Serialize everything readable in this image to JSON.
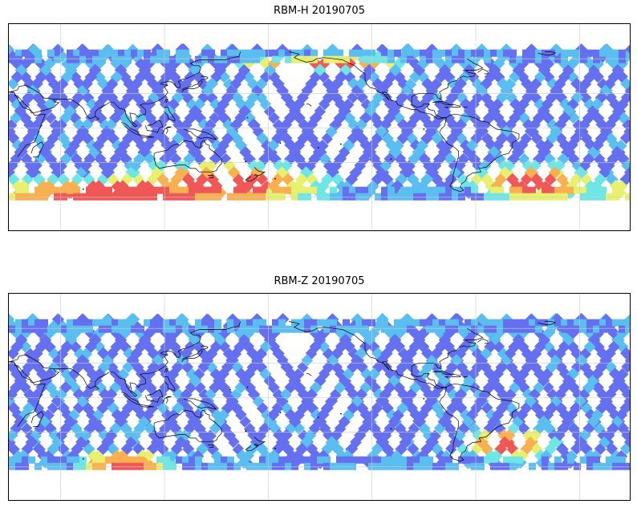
{
  "panels": [
    {
      "title": "RBM-H 20190705",
      "hot_regions": [
        {
          "lon": 95,
          "lat": -55,
          "w": 140,
          "h": 18
        },
        {
          "lon": 155,
          "lat": -47,
          "w": 90,
          "h": 25
        },
        {
          "lon": -150,
          "lat": 57,
          "w": 70,
          "h": 10
        },
        {
          "lon": -27,
          "lat": -46,
          "w": 55,
          "h": 20
        }
      ]
    },
    {
      "title": "RBM-Z 20190705",
      "hot_regions": [
        {
          "lon": -40,
          "lat": -40,
          "w": 40,
          "h": 18
        },
        {
          "lon": 95,
          "lat": -55,
          "w": 40,
          "h": 12
        }
      ]
    }
  ],
  "colors": {
    "swath_low": "#6470f0",
    "swath_mid": "#5abef0",
    "swath_cyan": "#6ee6e6",
    "swath_yellow": "#e8f070",
    "swath_orange": "#f8b050",
    "swath_red": "#f05858",
    "coastline": "#000000",
    "gridline": "#cccccc"
  },
  "map": {
    "lon_range": [
      30,
      390
    ],
    "lat_range": [
      -90,
      90
    ],
    "swath_lat_range": [
      -62,
      68
    ]
  }
}
